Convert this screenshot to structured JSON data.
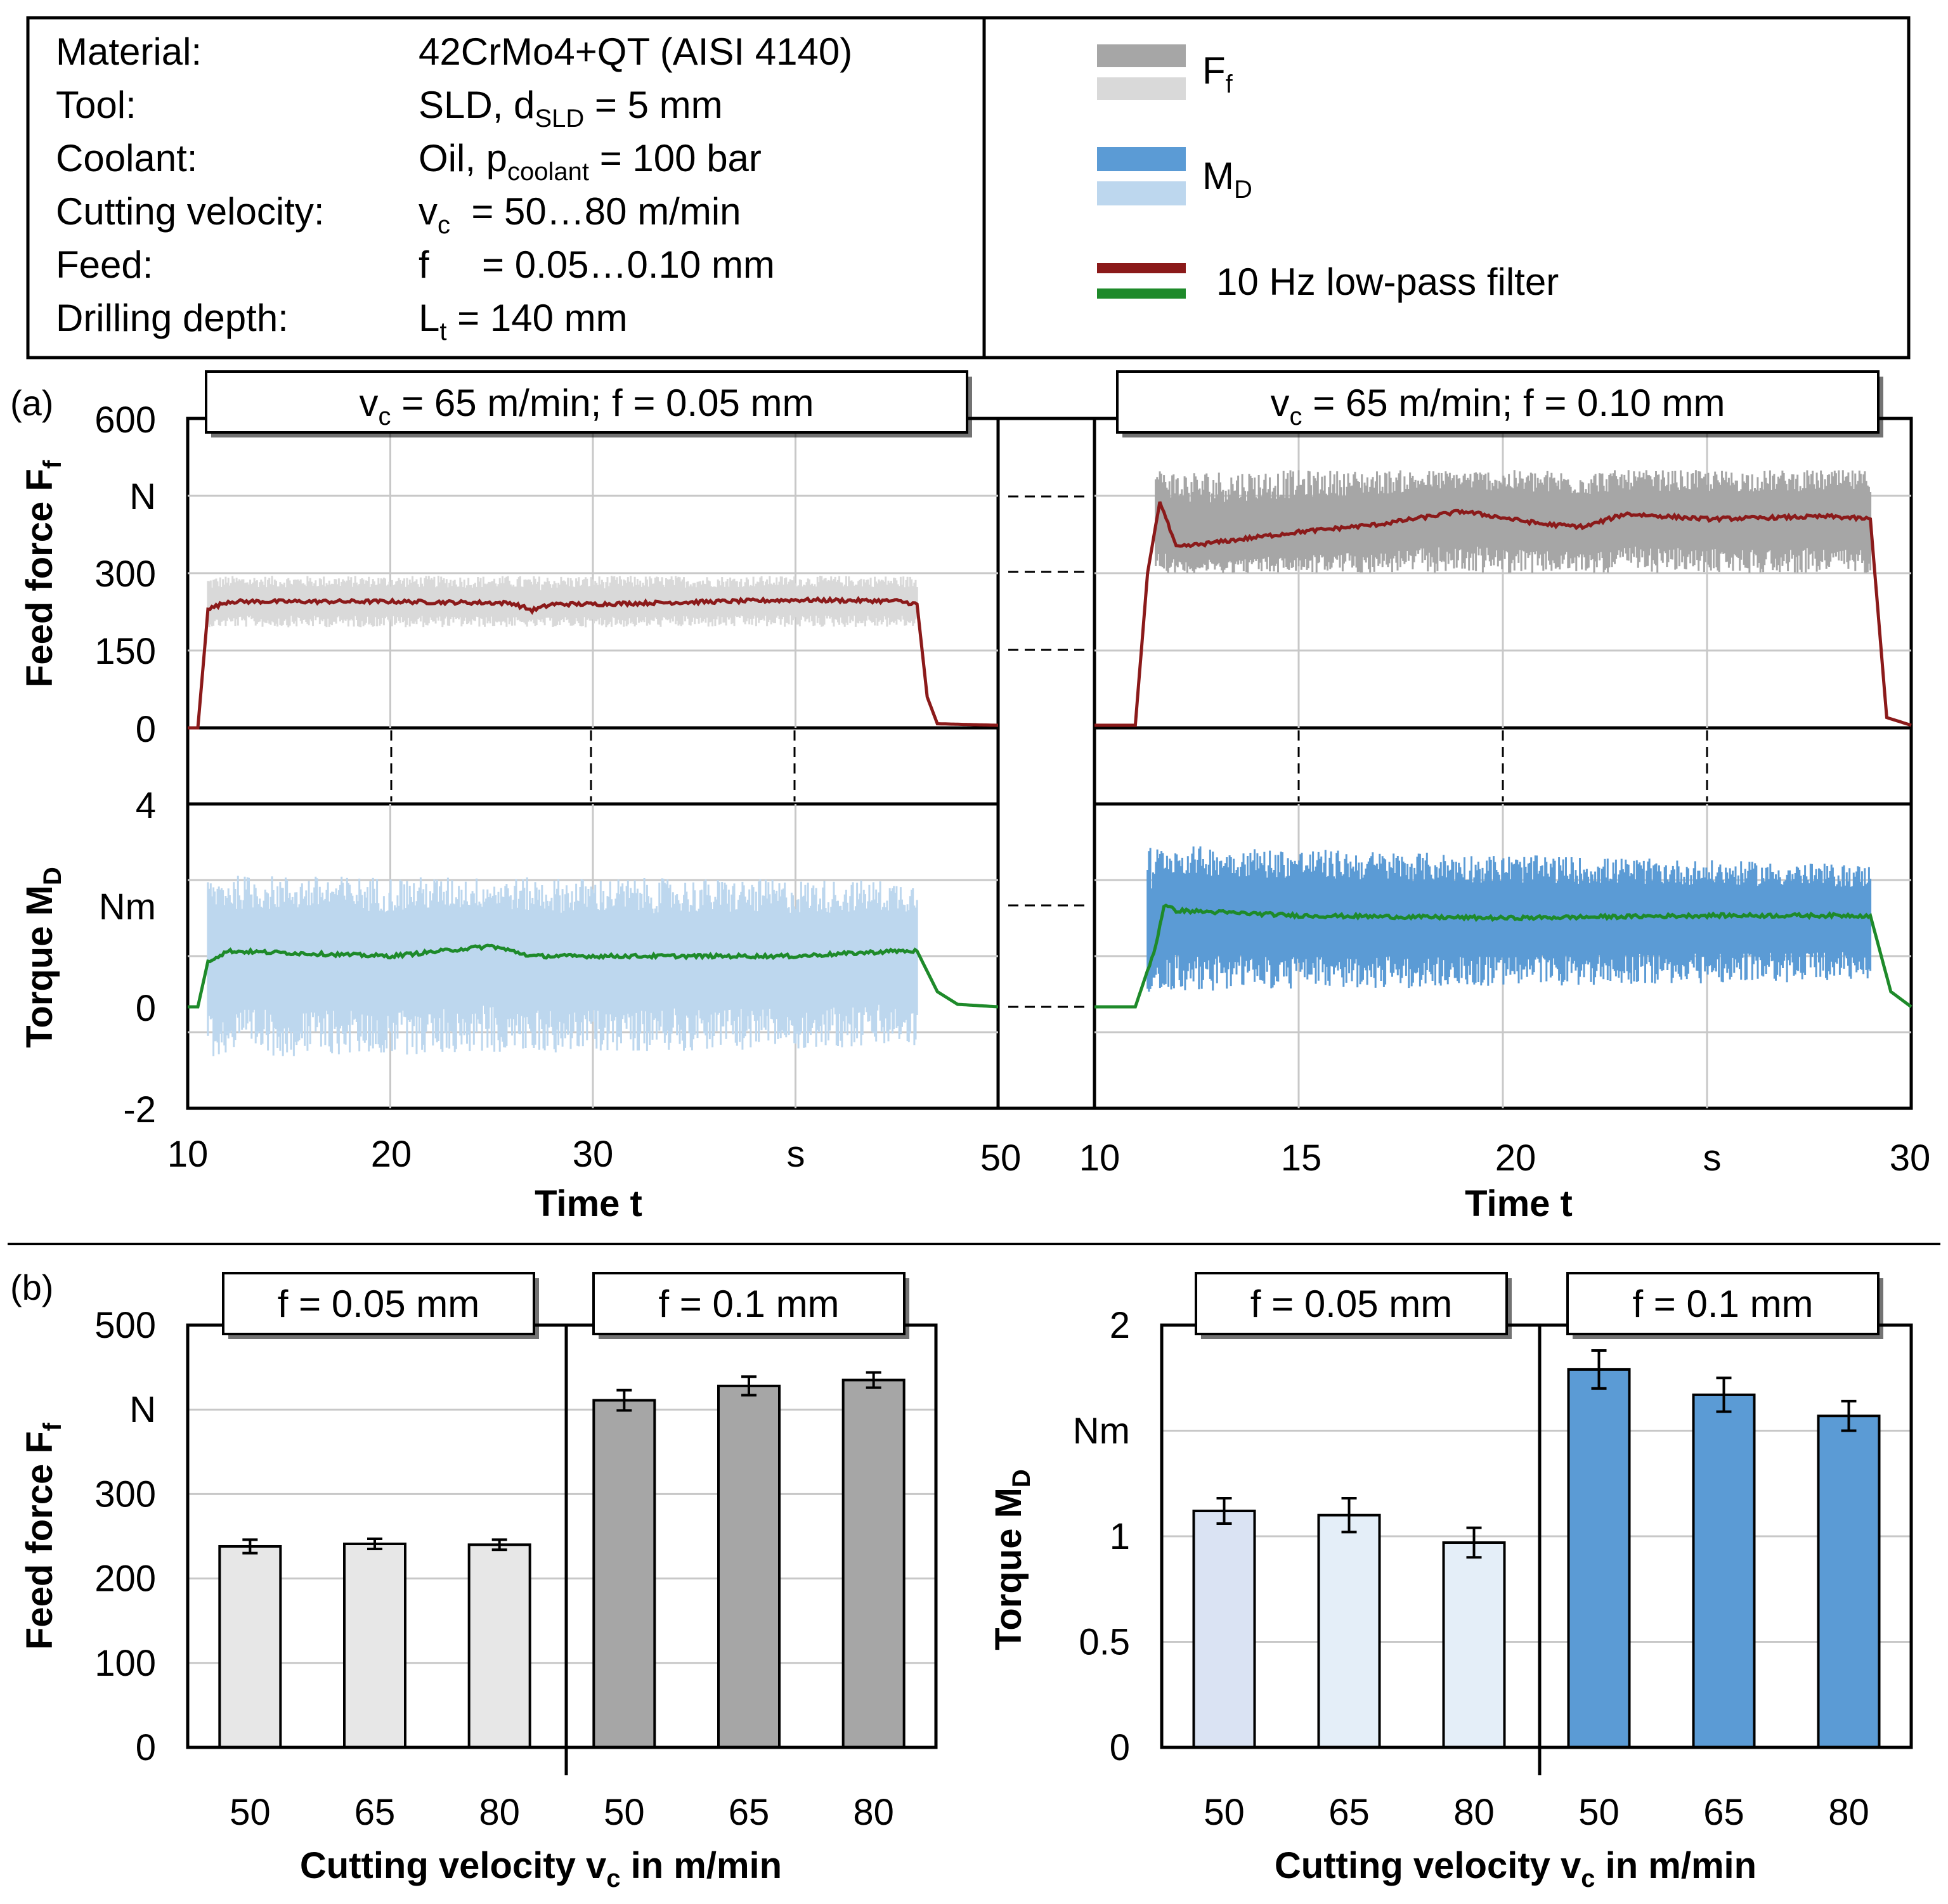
{
  "info_box": {
    "rows": [
      {
        "label": "Material:",
        "value": "42CrMo4+QT (AISI 4140)"
      },
      {
        "label": "Tool:",
        "value_main": "SLD, d",
        "value_sub": "SLD",
        "value_rest": " = 5 mm"
      },
      {
        "label": "Coolant:",
        "value_main": "Oil, p",
        "value_sub": "coolant",
        "value_rest": " = 100 bar"
      },
      {
        "label": "Cutting velocity:",
        "value_main": "v",
        "value_sub": "c",
        "value_rest": "  = 50…80 m/min"
      },
      {
        "label": "Feed:",
        "value": "f     = 0.05…0.10 mm"
      },
      {
        "label": "Drilling depth:",
        "value_main": "L",
        "value_sub": "t",
        "value_rest": " = 140 mm"
      }
    ]
  },
  "legend": {
    "ff_main": "F",
    "ff_sub": "f",
    "md_main": "M",
    "md_sub": "D",
    "filter_label": "10 Hz low-pass filter",
    "colors": {
      "ff_dark": "#a6a6a6",
      "ff_light": "#d9d9d9",
      "md_dark": "#5b9bd5",
      "md_light": "#bdd7ee",
      "filter_red": "#8b1a1a",
      "filter_green": "#1e8a2a"
    }
  },
  "panel_a": {
    "label": "(a)",
    "left_title_main": "v",
    "left_title_sub": "c",
    "left_title_rest": " = 65 m/min; f = 0.05 mm",
    "right_title_main": "v",
    "right_title_sub": "c",
    "right_title_rest": " = 65 m/min; f = 0.10 mm",
    "force_axis_main": "Feed force F",
    "force_axis_sub": "f",
    "force_ticks": [
      "600",
      "N",
      "300",
      "150",
      "0"
    ],
    "torque_axis_main": "Torque M",
    "torque_axis_sub": "D",
    "torque_ticks": [
      "4",
      "Nm",
      "0",
      "-2"
    ],
    "left_time_ticks": [
      "10",
      "20",
      "30",
      "s",
      "50"
    ],
    "right_time_ticks": [
      "10",
      "15",
      "20",
      "s",
      "30"
    ],
    "time_label": "Time t"
  },
  "panel_b": {
    "label": "(b)",
    "xlabel_main": "Cutting velocity v",
    "xlabel_sub": "c",
    "xlabel_rest": " in m/min",
    "group1": "f = 0.05 mm",
    "group2": "f = 0.1 mm"
  },
  "chart_data": [
    {
      "type": "line",
      "title": "v_c = 65 m/min; f = 0.05 mm",
      "xlabel": "Time t",
      "xunit": "s",
      "xlim": [
        10,
        50
      ],
      "ylabel": "Feed force F_f",
      "yunit": "N",
      "ylim": [
        0,
        600
      ],
      "series": [
        {
          "name": "F_f filtered",
          "x": [
            10,
            10.5,
            11,
            12,
            20,
            26,
            27,
            28,
            30,
            40,
            45,
            46,
            46.5,
            47,
            50
          ],
          "values": [
            0,
            0,
            230,
            245,
            245,
            242,
            228,
            240,
            240,
            248,
            246,
            240,
            60,
            8,
            5
          ]
        },
        {
          "name": "F_f raw band upper",
          "x": [
            11,
            46
          ],
          "values": [
            295,
            295
          ]
        },
        {
          "name": "F_f raw band lower",
          "x": [
            11,
            46
          ],
          "values": [
            195,
            195
          ]
        }
      ]
    },
    {
      "type": "line",
      "title": "v_c = 65 m/min; f = 0.10 mm",
      "xlabel": "Time t",
      "xunit": "s",
      "xlim": [
        10,
        30
      ],
      "ylabel": "Feed force F_f",
      "yunit": "N",
      "ylim": [
        0,
        600
      ],
      "series": [
        {
          "name": "F_f filtered",
          "x": [
            10,
            11,
            11.3,
            11.6,
            12,
            15,
            17,
            19,
            21,
            22,
            23,
            25,
            28,
            29,
            29.4,
            30
          ],
          "values": [
            5,
            5,
            300,
            440,
            350,
            380,
            395,
            420,
            395,
            390,
            415,
            405,
            410,
            405,
            20,
            5
          ]
        },
        {
          "name": "F_f raw band upper",
          "x": [
            11.5,
            29
          ],
          "values": [
            500,
            500
          ]
        },
        {
          "name": "F_f raw band lower",
          "x": [
            11.5,
            29
          ],
          "values": [
            300,
            300
          ]
        }
      ]
    },
    {
      "type": "line",
      "title": "v_c = 65 m/min; f = 0.05 mm",
      "xlabel": "Time t",
      "xunit": "s",
      "xlim": [
        10,
        50
      ],
      "ylabel": "Torque M_D",
      "yunit": "Nm",
      "ylim": [
        -2,
        4
      ],
      "series": [
        {
          "name": "M_D filtered",
          "x": [
            10,
            10.5,
            11,
            12,
            20,
            25,
            27,
            30,
            40,
            45,
            46,
            47,
            48,
            50
          ],
          "values": [
            0,
            0,
            0.9,
            1.1,
            1.0,
            1.2,
            1.0,
            1.0,
            1.0,
            1.1,
            1.1,
            0.3,
            0.05,
            0
          ]
        },
        {
          "name": "M_D raw band upper",
          "x": [
            11,
            46
          ],
          "values": [
            2.6,
            2.5
          ]
        },
        {
          "name": "M_D raw band lower",
          "x": [
            11,
            46
          ],
          "values": [
            -1.0,
            -0.8
          ]
        }
      ]
    },
    {
      "type": "line",
      "title": "v_c = 65 m/min; f = 0.10 mm",
      "xlabel": "Time t",
      "xunit": "s",
      "xlim": [
        10,
        30
      ],
      "ylabel": "Torque M_D",
      "yunit": "Nm",
      "ylim": [
        -2,
        4
      ],
      "series": [
        {
          "name": "M_D filtered",
          "x": [
            10,
            11,
            11.5,
            11.7,
            12,
            15,
            20,
            25,
            29,
            29.5,
            30
          ],
          "values": [
            0,
            0,
            1.2,
            2.0,
            1.9,
            1.8,
            1.75,
            1.8,
            1.8,
            0.3,
            0
          ]
        },
        {
          "name": "M_D raw band upper",
          "x": [
            11.3,
            29
          ],
          "values": [
            3.2,
            2.8
          ]
        },
        {
          "name": "M_D raw band lower",
          "x": [
            11.3,
            29
          ],
          "values": [
            0.3,
            0.5
          ]
        }
      ]
    },
    {
      "type": "bar",
      "ylabel": "Feed force F_f",
      "yunit": "N",
      "ylim": [
        0,
        500
      ],
      "xlabel": "Cutting velocity v_c in m/min",
      "categories": [
        "50",
        "65",
        "80",
        "50",
        "65",
        "80"
      ],
      "groups": [
        "f = 0.05 mm",
        "f = 0.05 mm",
        "f = 0.05 mm",
        "f = 0.1 mm",
        "f = 0.1 mm",
        "f = 0.1 mm"
      ],
      "values": [
        238,
        241,
        240,
        411,
        428,
        435
      ],
      "errors": [
        8,
        6,
        6,
        12,
        11,
        9
      ],
      "colors": [
        "#e7e7e7",
        "#e7e7e7",
        "#e7e7e7",
        "#a6a6a6",
        "#a6a6a6",
        "#a6a6a6"
      ]
    },
    {
      "type": "bar",
      "ylabel": "Torque M_D",
      "yunit": "Nm",
      "ylim": [
        0,
        2
      ],
      "xlabel": "Cutting velocity v_c in m/min",
      "categories": [
        "50",
        "65",
        "80",
        "50",
        "65",
        "80"
      ],
      "groups": [
        "f = 0.05 mm",
        "f = 0.05 mm",
        "f = 0.05 mm",
        "f = 0.1 mm",
        "f = 0.1 mm",
        "f = 0.1 mm"
      ],
      "values": [
        1.12,
        1.1,
        0.97,
        1.79,
        1.67,
        1.57
      ],
      "errors": [
        0.06,
        0.08,
        0.07,
        0.09,
        0.08,
        0.07
      ],
      "colors": [
        "#dae3f3",
        "#e4eef8",
        "#e4eef8",
        "#5b9bd5",
        "#5b9bd5",
        "#5b9bd5"
      ]
    }
  ]
}
